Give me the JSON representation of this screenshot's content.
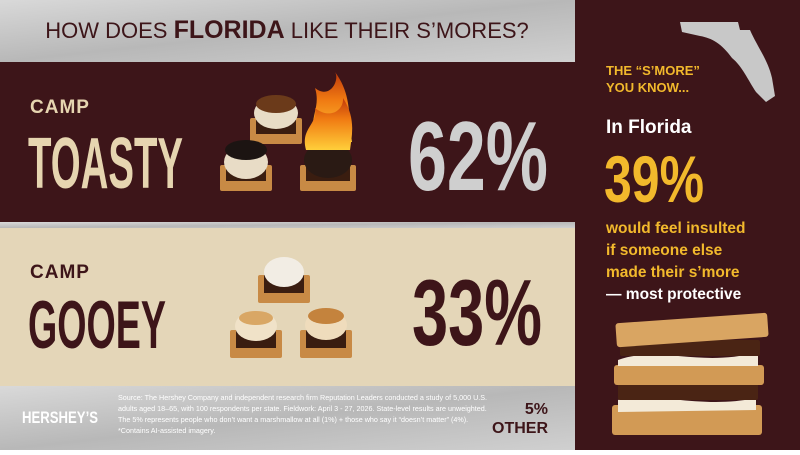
{
  "header": {
    "title_parts": [
      "HOW DOES ",
      "FLORIDA",
      " LIKE THEIR S’MORES?"
    ]
  },
  "panels": [
    {
      "small": "CAMP",
      "big": "TOASTY",
      "percent": "62%"
    },
    {
      "small": "CAMP",
      "big": "GOOEY",
      "percent": "33%"
    }
  ],
  "sidebar": {
    "kicker": [
      "THE “S’MORE”",
      "YOU KNOW..."
    ],
    "lead": "In Florida",
    "percent": "39%",
    "lines": [
      "would feel insulted",
      "if someone else",
      "made their s’more",
      "— most protective"
    ]
  },
  "footer": {
    "brand": "HERSHEY’S",
    "source": [
      "Source: The Hershey Company and independent research firm Reputation Leaders conducted a study of 5,000 U.S.",
      "adults aged 18–65, with 100 respondents per state. Fieldwork: April 3 - 27, 2026. State-level results are unweighted.",
      "The 5% represents people who don’t want a marshmallow at all (1%) + those who say it “doesn’t matter” (4%).",
      "*Contains AI-assisted imagery."
    ],
    "other_percent": "5%",
    "other_label": "OTHER"
  }
}
